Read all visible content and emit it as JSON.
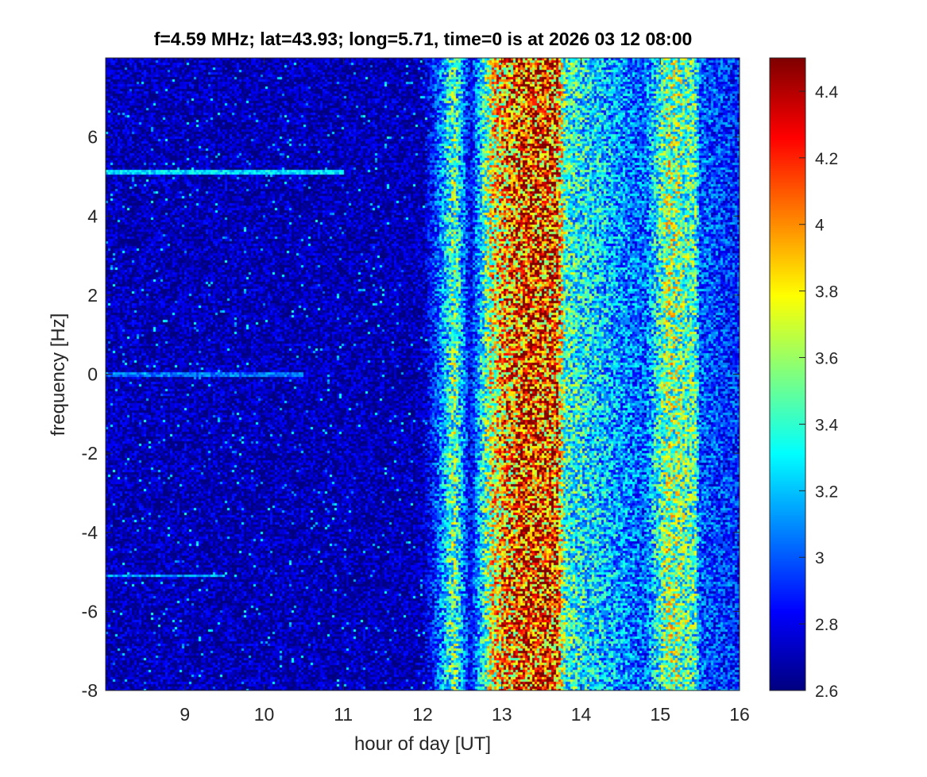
{
  "chart_data": {
    "type": "heatmap",
    "title": "f=4.59 MHz;  lat=43.93; long=5.71, time=0 is at 2026 03 12 08:00",
    "xlabel": "hour of day [UT]",
    "ylabel": "frequency [Hz]",
    "xlim": [
      8,
      16
    ],
    "ylim": [
      -8,
      8
    ],
    "xticks": [
      9,
      10,
      11,
      12,
      13,
      14,
      15,
      16
    ],
    "yticks": [
      -8,
      -6,
      -4,
      -2,
      0,
      2,
      4,
      6
    ],
    "colormap": "jet",
    "clim": [
      2.6,
      4.5
    ],
    "colorbar_ticks": [
      2.6,
      2.8,
      3,
      3.2,
      3.4,
      3.6,
      3.8,
      4,
      4.2,
      4.4
    ],
    "time_profile": [
      {
        "hour": 8.0,
        "level": 2.7
      },
      {
        "hour": 12.0,
        "level": 2.7
      },
      {
        "hour": 12.2,
        "level": 3.0
      },
      {
        "hour": 12.4,
        "level": 3.5
      },
      {
        "hour": 12.6,
        "level": 2.8
      },
      {
        "hour": 12.9,
        "level": 3.8
      },
      {
        "hour": 13.3,
        "level": 4.2
      },
      {
        "hour": 13.7,
        "level": 4.1
      },
      {
        "hour": 13.8,
        "level": 3.4
      },
      {
        "hour": 14.3,
        "level": 3.2
      },
      {
        "hour": 14.8,
        "level": 3.0
      },
      {
        "hour": 15.1,
        "level": 3.6
      },
      {
        "hour": 15.45,
        "level": 3.4
      },
      {
        "hour": 15.5,
        "level": 3.0
      },
      {
        "hour": 16.0,
        "level": 2.9
      }
    ],
    "horizontal_lines": [
      {
        "frequency": 5.1,
        "hour_range": [
          8.0,
          11.0
        ],
        "level": 3.4
      },
      {
        "frequency": 0.0,
        "hour_range": [
          8.0,
          10.5
        ],
        "level": 3.2
      },
      {
        "frequency": -5.1,
        "hour_range": [
          8.0,
          9.5
        ],
        "level": 3.3
      }
    ]
  }
}
